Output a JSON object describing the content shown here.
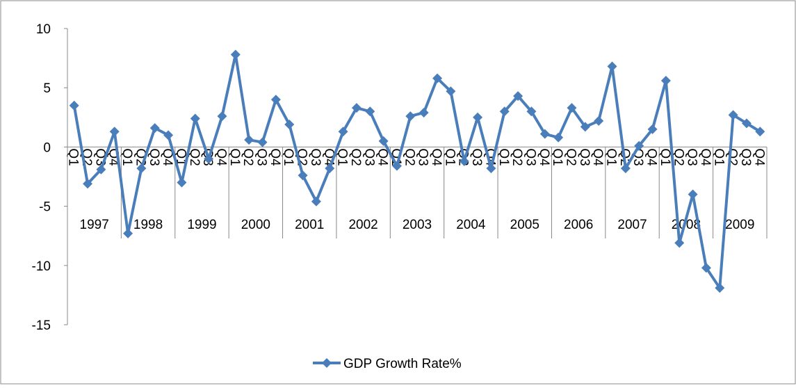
{
  "chart_data": {
    "type": "line",
    "categories": [
      "Q1",
      "Q2",
      "Q3",
      "Q4",
      "Q1",
      "Q2",
      "Q3",
      "Q4",
      "Q1",
      "Q2",
      "Q3",
      "Q4",
      "Q1",
      "Q2",
      "Q3",
      "Q4",
      "Q1",
      "Q2",
      "Q3",
      "Q4",
      "Q1",
      "Q2",
      "Q3",
      "Q4",
      "Q1",
      "Q2",
      "Q3",
      "Q4",
      "Q1",
      "Q2",
      "Q3",
      "Q4",
      "Q1",
      "Q2",
      "Q3",
      "Q4",
      "Q1",
      "Q2",
      "Q3",
      "Q4",
      "Q1",
      "Q2",
      "Q3",
      "Q4",
      "Q1",
      "Q2",
      "Q3",
      "Q4",
      "Q1",
      "Q2",
      "Q3",
      "Q4"
    ],
    "category_groups": [
      "1997",
      "1998",
      "1999",
      "2000",
      "2001",
      "2002",
      "2003",
      "2004",
      "2005",
      "2006",
      "2007",
      "2008",
      "2009"
    ],
    "series": [
      {
        "name": "GDP Growth Rate%",
        "color": "#4a7ebb",
        "values": [
          3.5,
          -3.1,
          -1.9,
          1.3,
          -7.3,
          -1.8,
          1.6,
          1.0,
          -3.0,
          2.4,
          -1.0,
          2.6,
          7.8,
          0.6,
          0.4,
          4.0,
          1.9,
          -2.4,
          -4.6,
          -1.8,
          1.3,
          3.3,
          3.0,
          0.5,
          -1.6,
          2.6,
          2.9,
          5.8,
          4.7,
          -1.2,
          2.5,
          -1.8,
          3.0,
          4.3,
          3.0,
          1.1,
          0.8,
          3.3,
          1.7,
          2.2,
          6.8,
          -1.8,
          0.1,
          1.5,
          5.6,
          -8.1,
          -4.0,
          -10.2,
          -11.9,
          2.7,
          2.0,
          1.3
        ]
      }
    ],
    "ylim": [
      -15,
      10
    ],
    "yticks": [
      -15,
      -10,
      -5,
      0,
      5,
      10
    ],
    "grid": false,
    "legend": "bottom"
  }
}
